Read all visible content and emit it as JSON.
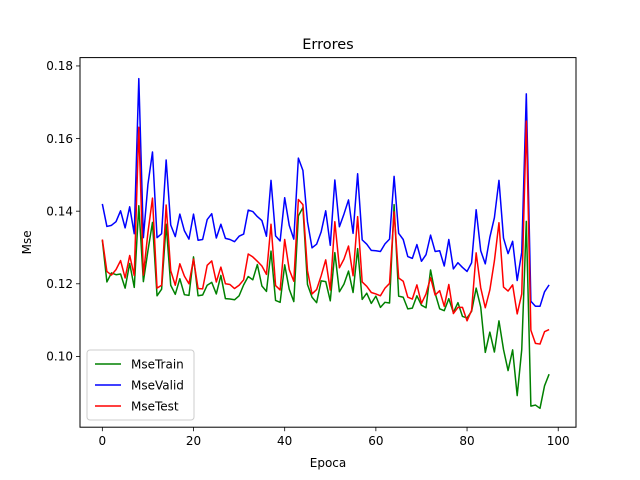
{
  "chart_data": {
    "type": "line",
    "title": "Errores",
    "xlabel": "Epoca",
    "ylabel": "Mse",
    "xlim": [
      -4.9,
      103.9
    ],
    "ylim": [
      0.0805,
      0.1823
    ],
    "xticks": [
      0,
      20,
      40,
      60,
      80,
      100
    ],
    "yticks": [
      0.1,
      0.12,
      0.14,
      0.16,
      0.18
    ],
    "xtick_labels": [
      "0",
      "20",
      "40",
      "60",
      "80",
      "100"
    ],
    "ytick_labels": [
      "0.10",
      "0.12",
      "0.14",
      "0.16",
      "0.18"
    ],
    "grid": false,
    "legend_position": "lower-left",
    "x": [
      0,
      1,
      2,
      3,
      4,
      5,
      6,
      7,
      8,
      9,
      10,
      11,
      12,
      13,
      14,
      15,
      16,
      17,
      18,
      19,
      20,
      21,
      22,
      23,
      24,
      25,
      26,
      27,
      28,
      29,
      30,
      31,
      32,
      33,
      34,
      35,
      36,
      37,
      38,
      39,
      40,
      41,
      42,
      43,
      44,
      45,
      46,
      47,
      48,
      49,
      50,
      51,
      52,
      53,
      54,
      55,
      56,
      57,
      58,
      59,
      60,
      61,
      62,
      63,
      64,
      65,
      66,
      67,
      68,
      69,
      70,
      71,
      72,
      73,
      74,
      75,
      76,
      77,
      78,
      79,
      80,
      81,
      82,
      83,
      84,
      85,
      86,
      87,
      88,
      89,
      90,
      91,
      92,
      93,
      94,
      95,
      96,
      97,
      98
    ],
    "series": [
      {
        "name": "MseTrain",
        "color": "#008000",
        "values": [
          0.132,
          0.1205,
          0.123,
          0.1225,
          0.1227,
          0.1188,
          0.1256,
          0.119,
          0.1415,
          0.1206,
          0.1291,
          0.1369,
          0.1167,
          0.1185,
          0.1364,
          0.1196,
          0.1171,
          0.1214,
          0.117,
          0.1168,
          0.1274,
          0.1167,
          0.1169,
          0.1196,
          0.1204,
          0.1172,
          0.1223,
          0.1159,
          0.1158,
          0.1156,
          0.1167,
          0.1197,
          0.122,
          0.1211,
          0.1253,
          0.1194,
          0.1179,
          0.129,
          0.1154,
          0.1149,
          0.1252,
          0.1185,
          0.1151,
          0.1387,
          0.141,
          0.1198,
          0.1163,
          0.1148,
          0.1208,
          0.1206,
          0.1153,
          0.1286,
          0.1178,
          0.1199,
          0.1235,
          0.1176,
          0.1297,
          0.1157,
          0.1174,
          0.1146,
          0.1166,
          0.1135,
          0.1149,
          0.1147,
          0.1418,
          0.1166,
          0.1163,
          0.1131,
          0.1133,
          0.1167,
          0.1141,
          0.1134,
          0.1238,
          0.1174,
          0.1131,
          0.1126,
          0.1159,
          0.1121,
          0.1148,
          0.111,
          0.1106,
          0.1124,
          0.1188,
          0.1136,
          0.1011,
          0.1067,
          0.1012,
          0.1098,
          0.1019,
          0.0961,
          0.1018,
          0.0892,
          0.1019,
          0.1372,
          0.0863,
          0.0866,
          0.0857,
          0.0919,
          0.0951
        ]
      },
      {
        "name": "MseValid",
        "color": "#0000ff",
        "values": [
          0.142,
          0.1358,
          0.1361,
          0.1371,
          0.1401,
          0.1354,
          0.1412,
          0.1338,
          0.1765,
          0.1327,
          0.1474,
          0.1563,
          0.1327,
          0.1338,
          0.1541,
          0.1362,
          0.133,
          0.1392,
          0.1346,
          0.1323,
          0.1392,
          0.132,
          0.1322,
          0.1377,
          0.1393,
          0.1326,
          0.1364,
          0.1325,
          0.1322,
          0.1316,
          0.1331,
          0.1337,
          0.1403,
          0.1399,
          0.1385,
          0.1374,
          0.1331,
          0.1485,
          0.1332,
          0.1318,
          0.1437,
          0.1361,
          0.1323,
          0.1546,
          0.1512,
          0.1371,
          0.1299,
          0.1309,
          0.1343,
          0.1401,
          0.1306,
          0.1486,
          0.1357,
          0.1392,
          0.1431,
          0.1339,
          0.1503,
          0.1321,
          0.1309,
          0.1292,
          0.1291,
          0.1289,
          0.131,
          0.1323,
          0.1496,
          0.1339,
          0.1322,
          0.1275,
          0.127,
          0.1308,
          0.1262,
          0.128,
          0.1334,
          0.1289,
          0.1291,
          0.1249,
          0.1322,
          0.1241,
          0.1258,
          0.1245,
          0.1234,
          0.1258,
          0.1404,
          0.1291,
          0.1255,
          0.1328,
          0.1382,
          0.1485,
          0.1326,
          0.1283,
          0.1317,
          0.1209,
          0.1287,
          0.1723,
          0.1152,
          0.1138,
          0.1138,
          0.1178,
          0.1197
        ]
      },
      {
        "name": "MseTest",
        "color": "#ff0000",
        "values": [
          0.1322,
          0.1234,
          0.1224,
          0.1239,
          0.1264,
          0.1216,
          0.1278,
          0.1223,
          0.1631,
          0.1224,
          0.1341,
          0.1436,
          0.1188,
          0.1196,
          0.1417,
          0.1236,
          0.1196,
          0.1255,
          0.1221,
          0.12,
          0.1268,
          0.1187,
          0.1186,
          0.1251,
          0.1263,
          0.1205,
          0.1246,
          0.12,
          0.1198,
          0.1187,
          0.1196,
          0.1211,
          0.1282,
          0.1274,
          0.1262,
          0.1249,
          0.1226,
          0.1364,
          0.1195,
          0.1183,
          0.1322,
          0.1239,
          0.1207,
          0.1432,
          0.1418,
          0.1236,
          0.1172,
          0.1184,
          0.1222,
          0.1266,
          0.1183,
          0.1371,
          0.1244,
          0.1268,
          0.1304,
          0.1222,
          0.1385,
          0.1205,
          0.1193,
          0.1176,
          0.1172,
          0.1167,
          0.1188,
          0.1201,
          0.1398,
          0.1216,
          0.1207,
          0.1163,
          0.1158,
          0.1197,
          0.1146,
          0.1172,
          0.1217,
          0.1169,
          0.1181,
          0.1138,
          0.1198,
          0.1118,
          0.1135,
          0.1135,
          0.1098,
          0.1127,
          0.1285,
          0.1189,
          0.1134,
          0.1183,
          0.1263,
          0.1368,
          0.1191,
          0.118,
          0.1197,
          0.1117,
          0.1172,
          0.1648,
          0.1072,
          0.1036,
          0.1034,
          0.1068,
          0.1074
        ]
      }
    ]
  }
}
